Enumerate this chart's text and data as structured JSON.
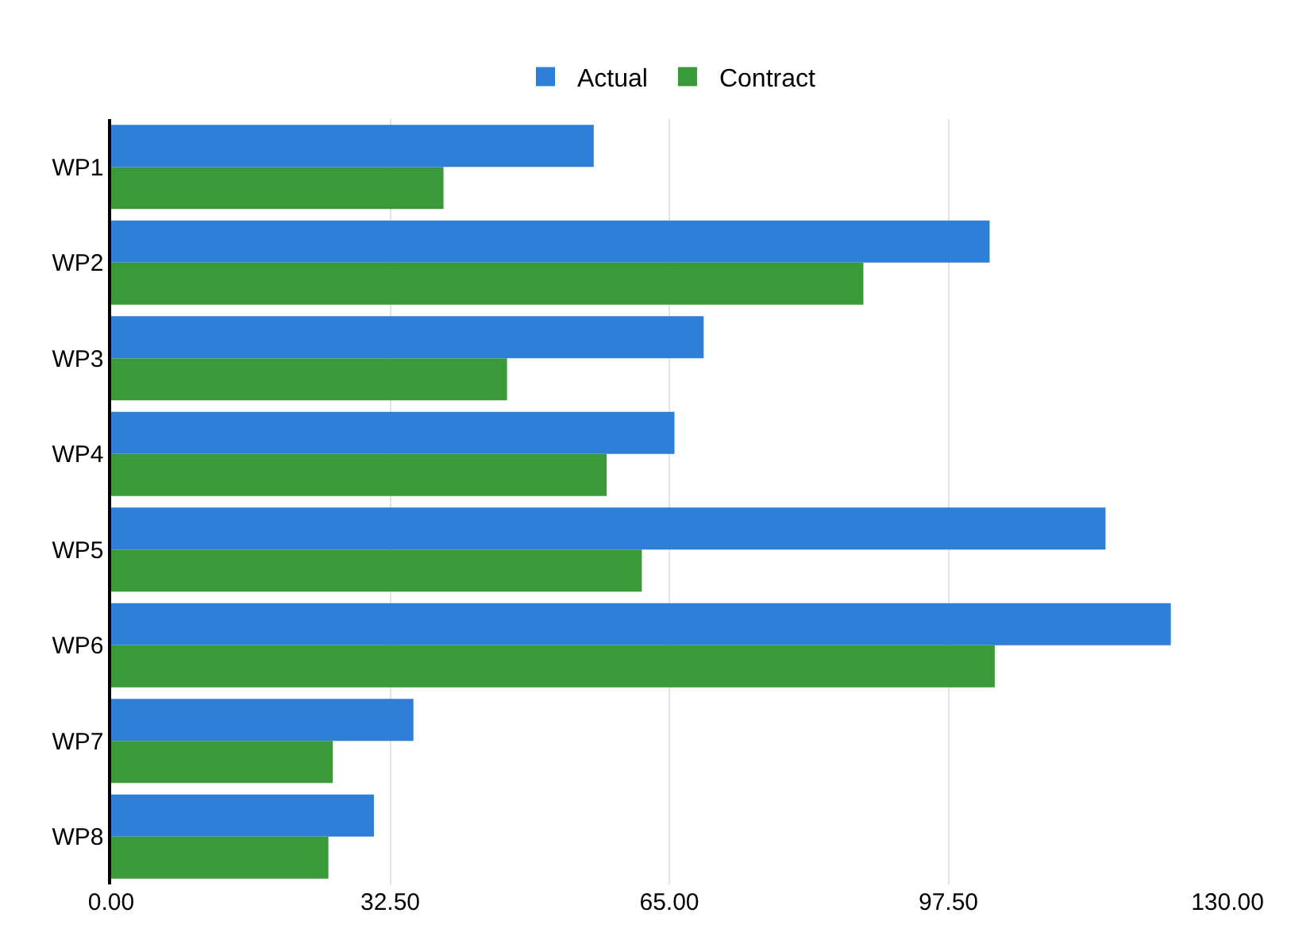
{
  "chart_data": {
    "type": "bar",
    "orientation": "horizontal",
    "categories": [
      "WP1",
      "WP2",
      "WP3",
      "WP4",
      "WP5",
      "WP6",
      "WP7",
      "WP8"
    ],
    "series": [
      {
        "name": "Actual",
        "color": "#2f7fd8",
        "values": [
          56.2,
          102.3,
          69.0,
          65.6,
          115.8,
          123.4,
          35.2,
          30.6
        ]
      },
      {
        "name": "Contract",
        "color": "#3a9a3a",
        "values": [
          38.7,
          87.6,
          46.1,
          57.7,
          61.8,
          102.9,
          25.8,
          25.3
        ]
      }
    ],
    "xlim": [
      0,
      130
    ],
    "xticks": [
      {
        "value": 0,
        "label": "0.00"
      },
      {
        "value": 32.5,
        "label": "32.50"
      },
      {
        "value": 65,
        "label": "65.00"
      },
      {
        "value": 97.5,
        "label": "97.50"
      },
      {
        "value": 130,
        "label": "130.00"
      }
    ],
    "grid": "x",
    "legend": "top"
  }
}
